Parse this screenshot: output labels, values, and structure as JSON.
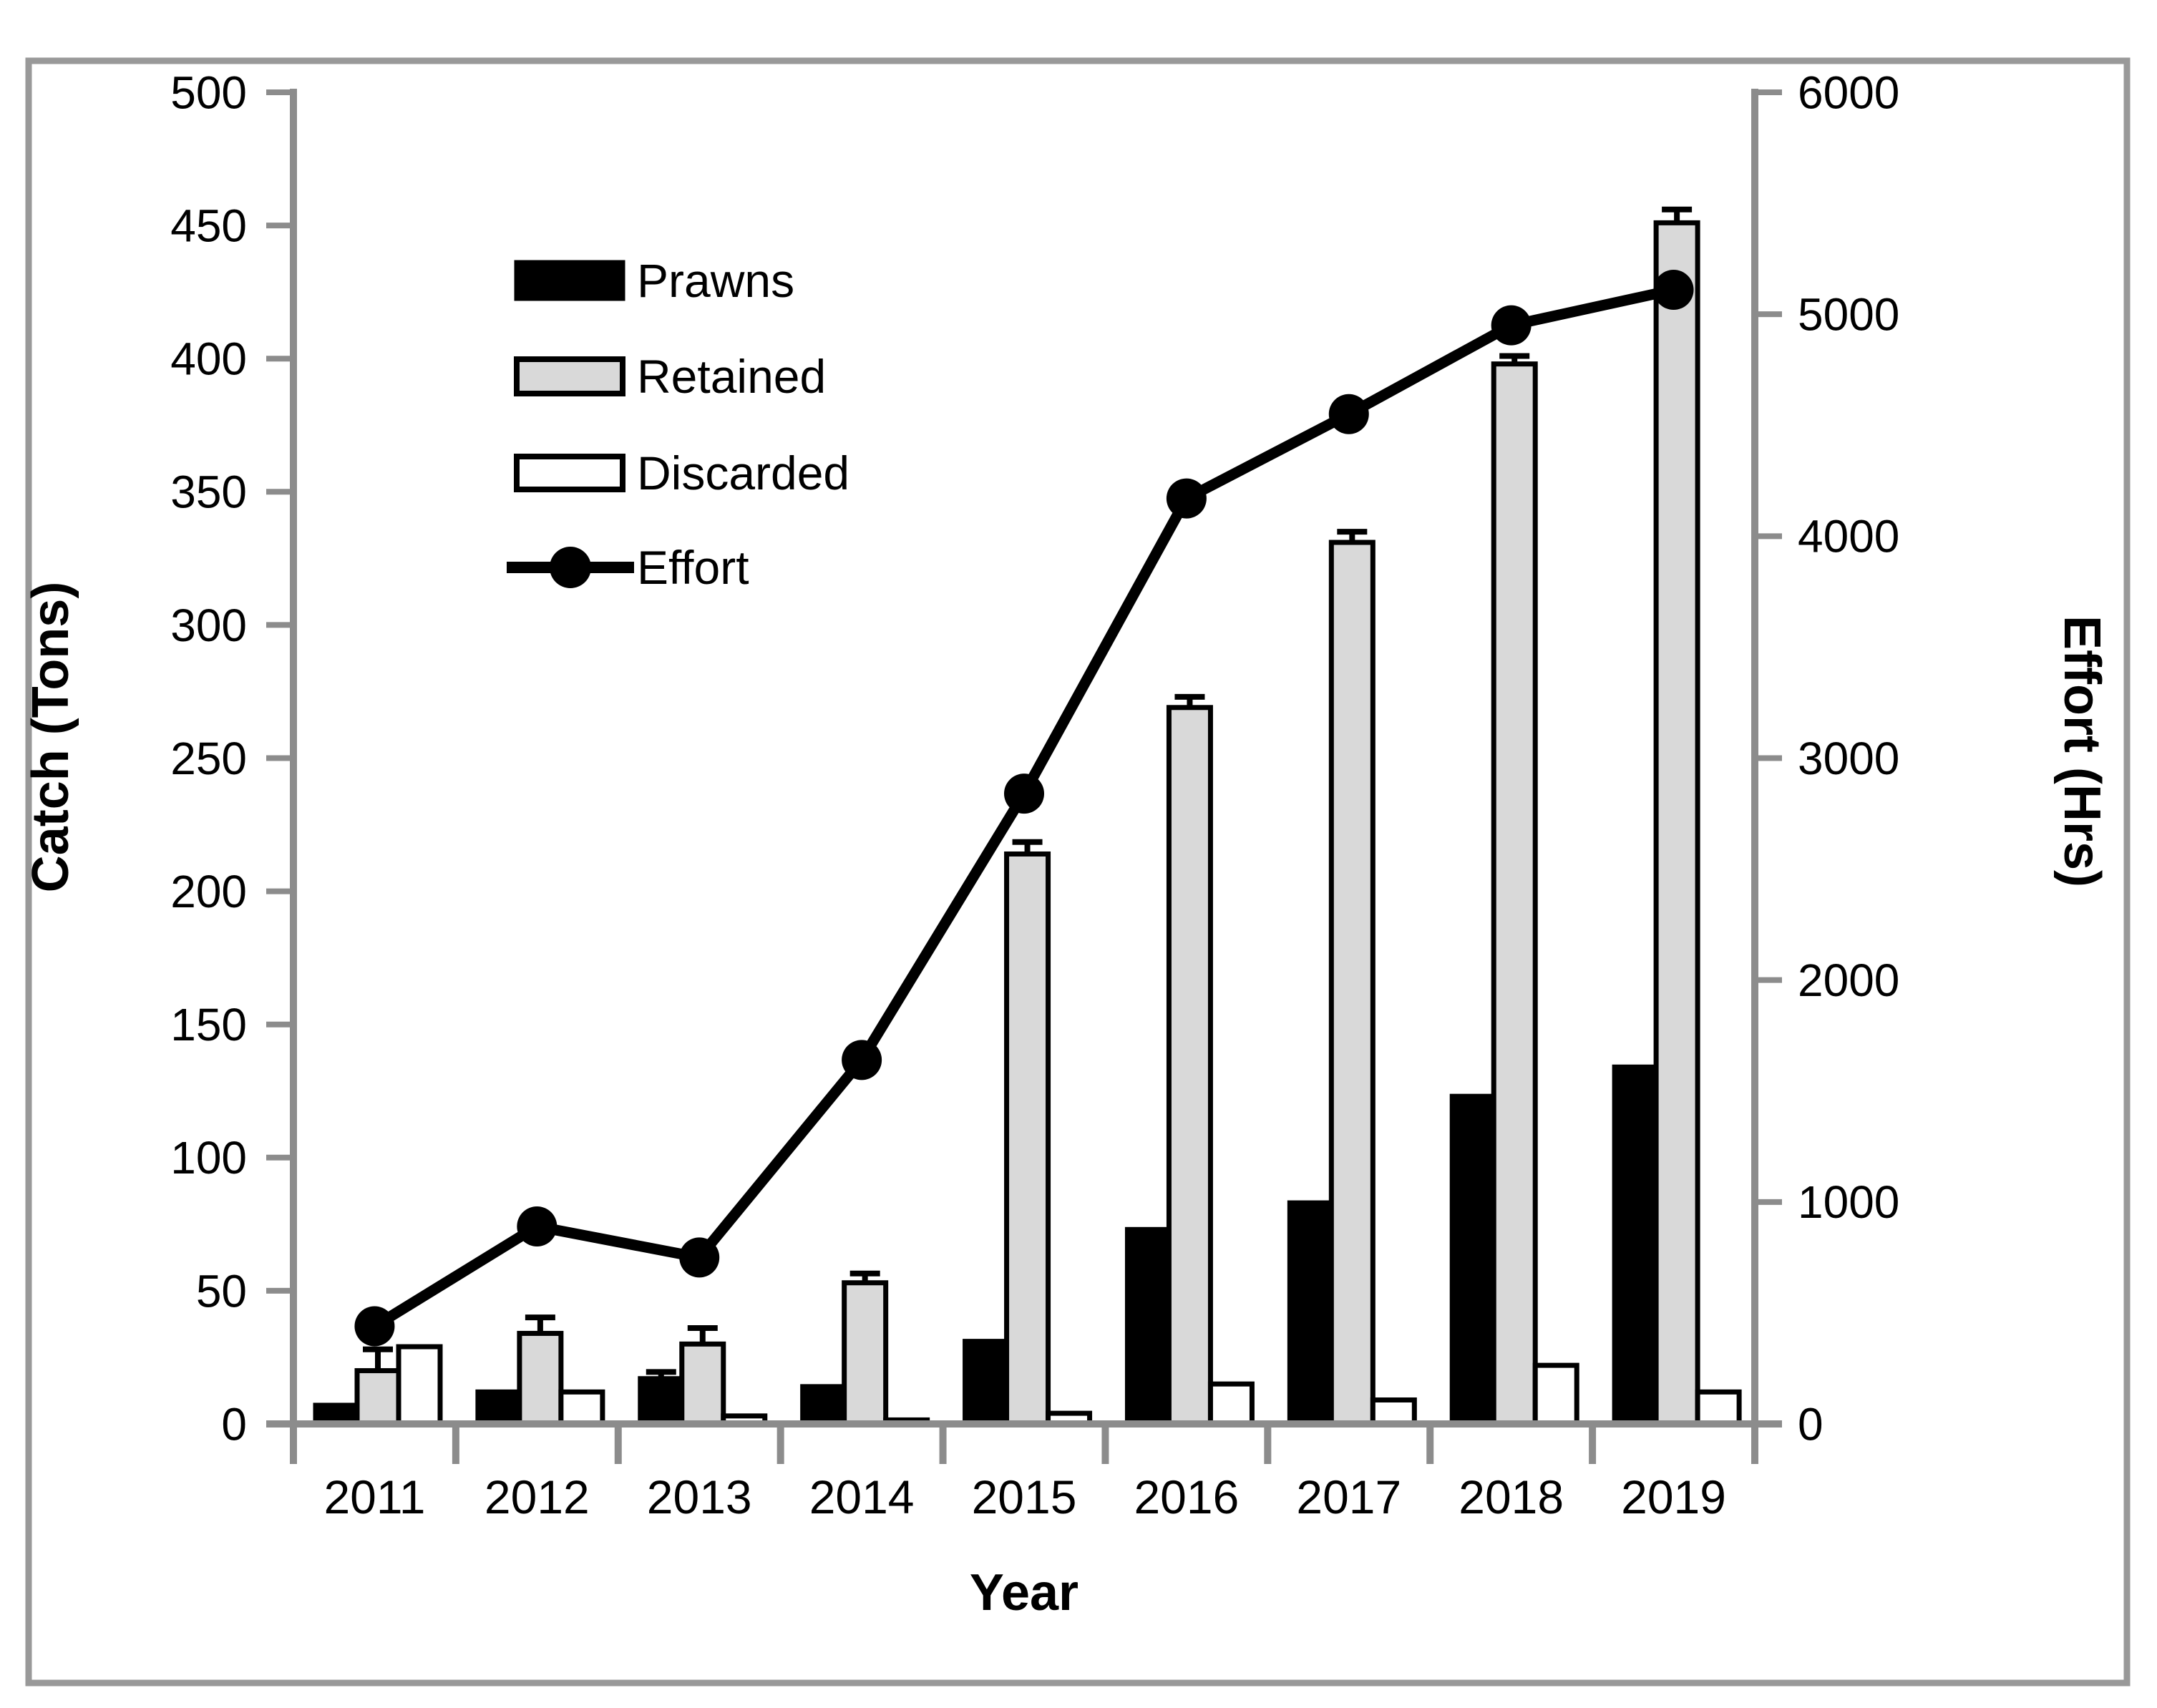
{
  "axes": {
    "left": {
      "title": "Catch (Tons)",
      "ticks": [
        "0",
        "50",
        "100",
        "150",
        "200",
        "250",
        "300",
        "350",
        "400",
        "450",
        "500"
      ]
    },
    "right": {
      "title": "Effort (Hrs)",
      "ticks": [
        "0",
        "1000",
        "2000",
        "3000",
        "4000",
        "5000",
        "6000"
      ]
    },
    "x": {
      "title": "Year",
      "categories": [
        "2011",
        "2012",
        "2013",
        "2014",
        "2015",
        "2016",
        "2017",
        "2018",
        "2019"
      ]
    }
  },
  "legend": {
    "items": [
      {
        "label": "Prawns",
        "swatch": "black-bar"
      },
      {
        "label": "Retained",
        "swatch": "gray-bar"
      },
      {
        "label": "Discarded",
        "swatch": "white-bar"
      },
      {
        "label": "Effort",
        "swatch": "line-marker"
      }
    ]
  },
  "colors": {
    "prawns_fill": "#000000",
    "retained_fill": "#d9d9d9",
    "discarded_fill": "#ffffff",
    "bar_border": "#000000",
    "effort_line": "#000000",
    "axis_line": "#8c8c8c",
    "frame_border": "#999999"
  },
  "chart_data": {
    "type": "bar+line",
    "title": "",
    "xlabel": "Year",
    "ylabel_left": "Catch (Tons)",
    "ylabel_right": "Effort (Hrs)",
    "ylim_left": [
      0,
      500
    ],
    "ylim_right": [
      0,
      6000
    ],
    "grid": false,
    "legend_position": "upper-left-inside",
    "categories": [
      "2011",
      "2012",
      "2013",
      "2014",
      "2015",
      "2016",
      "2017",
      "2018",
      "2019"
    ],
    "series": [
      {
        "name": "Prawns",
        "type": "bar",
        "axis": "left",
        "values": [
          7,
          12,
          17,
          14,
          31,
          73,
          83,
          123,
          134
        ],
        "errors": [
          0,
          0,
          2.5,
          0,
          0,
          0,
          0,
          0,
          0
        ]
      },
      {
        "name": "Retained",
        "type": "bar",
        "axis": "left",
        "values": [
          20,
          34,
          30,
          53,
          214,
          269,
          331,
          398,
          451
        ],
        "errors": [
          8,
          6,
          6,
          3.5,
          4.5,
          4,
          4,
          3,
          5
        ]
      },
      {
        "name": "Discarded",
        "type": "bar",
        "axis": "left",
        "values": [
          29,
          12,
          3,
          1.5,
          4,
          15,
          9,
          22,
          12
        ],
        "errors": [
          0,
          0,
          0,
          0,
          0,
          0,
          0,
          0,
          0
        ]
      },
      {
        "name": "Effort",
        "type": "line",
        "axis": "right",
        "values": [
          440,
          890,
          750,
          1640,
          2840,
          4170,
          4550,
          4950,
          5110
        ]
      }
    ]
  }
}
